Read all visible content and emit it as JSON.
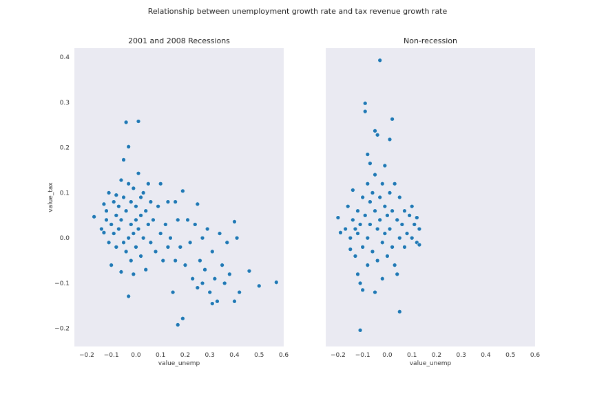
{
  "figure": {
    "suptitle": "Relationship between unemployment growth rate and tax revenue growth rate",
    "colors": {
      "background": "#eaeaf2",
      "point": "#1f77b4",
      "point_edge": "#ffffff"
    }
  },
  "chart_data": [
    {
      "type": "scatter",
      "title": "2001 and 2008 Recessions",
      "xlabel": "value_unemp",
      "ylabel": "value_tax",
      "xlim": [
        -0.25,
        0.6
      ],
      "ylim": [
        -0.24,
        0.42
      ],
      "xticks": [
        -0.2,
        -0.1,
        0.0,
        0.1,
        0.2,
        0.3,
        0.4,
        0.5,
        0.6
      ],
      "xtick_labels": [
        "−0.2",
        "−0.1",
        "0.0",
        "0.1",
        "0.2",
        "0.3",
        "0.4",
        "0.5",
        "0.6"
      ],
      "yticks": [
        -0.2,
        -0.1,
        0.0,
        0.1,
        0.2,
        0.3,
        0.4
      ],
      "ytick_labels": [
        "−0.2",
        "−0.1",
        "0.0",
        "0.1",
        "0.2",
        "0.3",
        "0.4"
      ],
      "grid": false,
      "points": [
        [
          -0.17,
          0.047
        ],
        [
          -0.14,
          0.02
        ],
        [
          -0.13,
          0.012
        ],
        [
          -0.13,
          0.075
        ],
        [
          -0.12,
          0.04
        ],
        [
          -0.12,
          0.06
        ],
        [
          -0.11,
          -0.01
        ],
        [
          -0.11,
          0.1
        ],
        [
          -0.1,
          -0.06
        ],
        [
          -0.1,
          0.03
        ],
        [
          -0.09,
          0.08
        ],
        [
          -0.09,
          0.01
        ],
        [
          -0.08,
          0.095
        ],
        [
          -0.08,
          0.05
        ],
        [
          -0.08,
          -0.02
        ],
        [
          -0.07,
          0.07
        ],
        [
          -0.07,
          0.02
        ],
        [
          -0.06,
          0.128
        ],
        [
          -0.06,
          -0.075
        ],
        [
          -0.06,
          0.04
        ],
        [
          -0.05,
          0.173
        ],
        [
          -0.05,
          0.09
        ],
        [
          -0.05,
          -0.01
        ],
        [
          -0.04,
          0.256
        ],
        [
          -0.04,
          0.06
        ],
        [
          -0.04,
          -0.03
        ],
        [
          -0.03,
          0.202
        ],
        [
          -0.03,
          0.12
        ],
        [
          -0.03,
          -0.129
        ],
        [
          -0.03,
          0.0
        ],
        [
          -0.02,
          0.08
        ],
        [
          -0.02,
          0.03
        ],
        [
          -0.02,
          -0.05
        ],
        [
          -0.01,
          0.11
        ],
        [
          -0.01,
          0.01
        ],
        [
          -0.01,
          -0.08
        ],
        [
          0.0,
          0.07
        ],
        [
          0.0,
          0.04
        ],
        [
          0.0,
          -0.02
        ],
        [
          0.01,
          0.143
        ],
        [
          0.01,
          0.258
        ],
        [
          0.01,
          0.02
        ],
        [
          0.02,
          0.09
        ],
        [
          0.02,
          -0.04
        ],
        [
          0.02,
          0.05
        ],
        [
          0.03,
          0.1
        ],
        [
          0.03,
          0.0
        ],
        [
          0.04,
          0.06
        ],
        [
          0.04,
          -0.07
        ],
        [
          0.05,
          0.12
        ],
        [
          0.05,
          0.03
        ],
        [
          0.06,
          -0.01
        ],
        [
          0.06,
          0.08
        ],
        [
          0.07,
          0.04
        ],
        [
          0.08,
          -0.03
        ],
        [
          0.09,
          0.07
        ],
        [
          0.1,
          0.12
        ],
        [
          0.1,
          0.01
        ],
        [
          0.11,
          -0.05
        ],
        [
          0.12,
          0.03
        ],
        [
          0.13,
          0.08
        ],
        [
          0.13,
          -0.02
        ],
        [
          0.14,
          0.0
        ],
        [
          0.15,
          -0.12
        ],
        [
          0.16,
          0.08
        ],
        [
          0.16,
          -0.05
        ],
        [
          0.17,
          0.04
        ],
        [
          0.17,
          -0.192
        ],
        [
          0.18,
          -0.02
        ],
        [
          0.19,
          0.104
        ],
        [
          0.19,
          -0.178
        ],
        [
          0.2,
          -0.06
        ],
        [
          0.21,
          0.04
        ],
        [
          0.22,
          -0.01
        ],
        [
          0.23,
          -0.09
        ],
        [
          0.24,
          0.03
        ],
        [
          0.25,
          0.075
        ],
        [
          0.25,
          -0.11
        ],
        [
          0.26,
          -0.05
        ],
        [
          0.27,
          0.0
        ],
        [
          0.27,
          -0.1
        ],
        [
          0.28,
          -0.07
        ],
        [
          0.29,
          0.02
        ],
        [
          0.3,
          -0.12
        ],
        [
          0.31,
          -0.145
        ],
        [
          0.31,
          -0.03
        ],
        [
          0.32,
          -0.09
        ],
        [
          0.33,
          -0.14
        ],
        [
          0.34,
          0.01
        ],
        [
          0.35,
          -0.06
        ],
        [
          0.36,
          -0.1
        ],
        [
          0.37,
          -0.01
        ],
        [
          0.38,
          -0.08
        ],
        [
          0.4,
          0.036
        ],
        [
          0.4,
          -0.14
        ],
        [
          0.41,
          0.0
        ],
        [
          0.42,
          -0.12
        ],
        [
          0.46,
          -0.073
        ],
        [
          0.5,
          -0.106
        ],
        [
          0.57,
          -0.098
        ]
      ]
    },
    {
      "type": "scatter",
      "title": "Non-recession",
      "xlabel": "value_unemp",
      "ylabel": "",
      "xlim": [
        -0.25,
        0.6
      ],
      "ylim": [
        -0.24,
        0.42
      ],
      "xticks": [
        -0.2,
        -0.1,
        0.0,
        0.1,
        0.2,
        0.3,
        0.4,
        0.5,
        0.6
      ],
      "xtick_labels": [
        "−0.2",
        "−0.1",
        "0.0",
        "0.1",
        "0.2",
        "0.3",
        "0.4",
        "0.5",
        "0.6"
      ],
      "yticks": [],
      "ytick_labels": [],
      "grid": false,
      "points": [
        [
          -0.2,
          0.045
        ],
        [
          -0.19,
          0.012
        ],
        [
          -0.17,
          0.02
        ],
        [
          -0.16,
          0.07
        ],
        [
          -0.15,
          -0.025
        ],
        [
          -0.15,
          0.0
        ],
        [
          -0.14,
          0.04
        ],
        [
          -0.14,
          0.106
        ],
        [
          -0.13,
          0.02
        ],
        [
          -0.13,
          -0.04
        ],
        [
          -0.12,
          0.06
        ],
        [
          -0.12,
          -0.08
        ],
        [
          -0.12,
          0.01
        ],
        [
          -0.11,
          -0.204
        ],
        [
          -0.11,
          0.03
        ],
        [
          -0.11,
          -0.1
        ],
        [
          -0.1,
          0.09
        ],
        [
          -0.1,
          -0.02
        ],
        [
          -0.1,
          -0.115
        ],
        [
          -0.09,
          0.298
        ],
        [
          -0.09,
          0.28
        ],
        [
          -0.09,
          0.05
        ],
        [
          -0.08,
          0.185
        ],
        [
          -0.08,
          0.12
        ],
        [
          -0.08,
          0.0
        ],
        [
          -0.08,
          -0.06
        ],
        [
          -0.07,
          0.165
        ],
        [
          -0.07,
          0.08
        ],
        [
          -0.07,
          0.03
        ],
        [
          -0.06,
          -0.03
        ],
        [
          -0.06,
          0.1
        ],
        [
          -0.05,
          0.237
        ],
        [
          -0.05,
          0.14
        ],
        [
          -0.05,
          0.06
        ],
        [
          -0.05,
          -0.12
        ],
        [
          -0.04,
          0.228
        ],
        [
          -0.04,
          0.02
        ],
        [
          -0.04,
          -0.05
        ],
        [
          -0.03,
          0.393
        ],
        [
          -0.03,
          0.09
        ],
        [
          -0.03,
          0.04
        ],
        [
          -0.02,
          0.12
        ],
        [
          -0.02,
          -0.01
        ],
        [
          -0.02,
          -0.09
        ],
        [
          -0.01,
          0.16
        ],
        [
          -0.01,
          0.07
        ],
        [
          -0.01,
          0.01
        ],
        [
          0.0,
          0.05
        ],
        [
          0.0,
          -0.04
        ],
        [
          0.01,
          0.218
        ],
        [
          0.01,
          0.1
        ],
        [
          0.01,
          0.02
        ],
        [
          0.02,
          0.263
        ],
        [
          0.02,
          -0.02
        ],
        [
          0.02,
          0.06
        ],
        [
          0.03,
          0.12
        ],
        [
          0.03,
          -0.06
        ],
        [
          0.04,
          0.04
        ],
        [
          0.04,
          -0.08
        ],
        [
          0.05,
          0.09
        ],
        [
          0.05,
          -0.163
        ],
        [
          0.05,
          0.0
        ],
        [
          0.06,
          0.03
        ],
        [
          0.07,
          0.06
        ],
        [
          0.07,
          -0.02
        ],
        [
          0.08,
          0.01
        ],
        [
          0.09,
          0.05
        ],
        [
          0.1,
          0.07
        ],
        [
          0.1,
          0.0
        ],
        [
          0.11,
          0.03
        ],
        [
          0.12,
          0.045
        ],
        [
          0.12,
          -0.01
        ],
        [
          0.13,
          -0.015
        ],
        [
          0.13,
          0.02
        ]
      ]
    }
  ]
}
